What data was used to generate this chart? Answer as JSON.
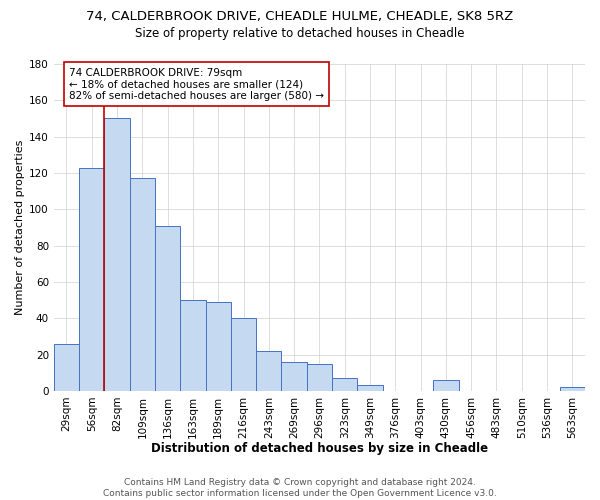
{
  "title1": "74, CALDERBROOK DRIVE, CHEADLE HULME, CHEADLE, SK8 5RZ",
  "title2": "Size of property relative to detached houses in Cheadle",
  "xlabel": "Distribution of detached houses by size in Cheadle",
  "ylabel": "Number of detached properties",
  "bar_labels": [
    "29sqm",
    "56sqm",
    "82sqm",
    "109sqm",
    "136sqm",
    "163sqm",
    "189sqm",
    "216sqm",
    "243sqm",
    "269sqm",
    "296sqm",
    "323sqm",
    "349sqm",
    "376sqm",
    "403sqm",
    "430sqm",
    "456sqm",
    "483sqm",
    "510sqm",
    "536sqm",
    "563sqm"
  ],
  "bar_values": [
    26,
    123,
    150,
    117,
    91,
    50,
    49,
    40,
    22,
    16,
    15,
    7,
    3,
    0,
    0,
    6,
    0,
    0,
    0,
    0,
    2
  ],
  "bar_color": "#c5d9f0",
  "bar_edge_color": "#4472c4",
  "ylim": [
    0,
    180
  ],
  "yticks": [
    0,
    20,
    40,
    60,
    80,
    100,
    120,
    140,
    160,
    180
  ],
  "property_label": "74 CALDERBROOK DRIVE: 79sqm",
  "annotation_line1": "← 18% of detached houses are smaller (124)",
  "annotation_line2": "82% of semi-detached houses are larger (580) →",
  "vline_color": "#c00000",
  "annotation_box_color": "#ffffff",
  "annotation_box_edge": "#c00000",
  "footer1": "Contains HM Land Registry data © Crown copyright and database right 2024.",
  "footer2": "Contains public sector information licensed under the Open Government Licence v3.0.",
  "bg_color": "#ffffff",
  "grid_color": "#d0d0d0",
  "title1_fontsize": 9.5,
  "title2_fontsize": 8.5,
  "xlabel_fontsize": 8.5,
  "ylabel_fontsize": 8,
  "tick_fontsize": 7.5,
  "annot_fontsize": 7.5,
  "footer_fontsize": 6.5
}
